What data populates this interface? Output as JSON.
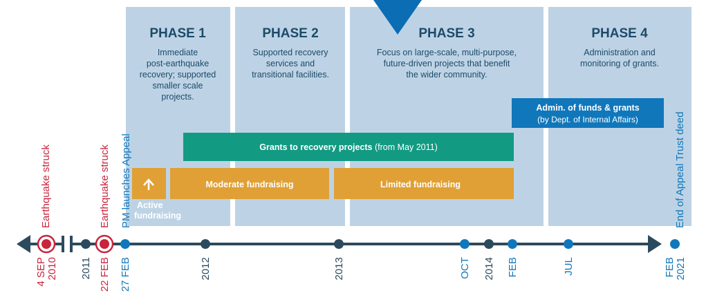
{
  "phases": [
    {
      "title": "PHASE 1",
      "lines": [
        "Immediate",
        "post-earthquake",
        "recovery; supported",
        "smaller scale",
        "projects."
      ]
    },
    {
      "title": "PHASE 2",
      "lines": [
        "Supported recovery",
        "services and",
        "transitional facilities."
      ]
    },
    {
      "title": "PHASE 3",
      "lines": [
        "Focus on large-scale, multi-purpose,",
        "future-driven projects that benefit",
        "the wider community."
      ]
    },
    {
      "title": "PHASE 4",
      "lines": [
        "Administration and",
        "monitoring of grants."
      ]
    }
  ],
  "bars": {
    "grants": {
      "bold": "Grants to recovery projects",
      "note": "(from May 2011)"
    },
    "active": [
      "Active",
      "fundraising"
    ],
    "moderate": "Moderate fundraising",
    "limited": "Limited fundraising",
    "admin": [
      "Admin. of funds & grants",
      "(by Dept. of Internal Affairs)"
    ]
  },
  "events": [
    "Earthquake struck",
    "Earthquake struck",
    "PM launches Appeal",
    "End of Appeal Trust deed"
  ],
  "dates": [
    [
      "4 SEP",
      "2010"
    ],
    [
      "2011"
    ],
    [
      "22 FEB"
    ],
    [
      "27 FEB"
    ],
    [
      "2012"
    ],
    [
      "2013"
    ],
    [
      "OCT"
    ],
    [
      "2014"
    ],
    [
      "FEB"
    ],
    [
      "JUL"
    ],
    [
      "FEB",
      "2021"
    ]
  ]
}
